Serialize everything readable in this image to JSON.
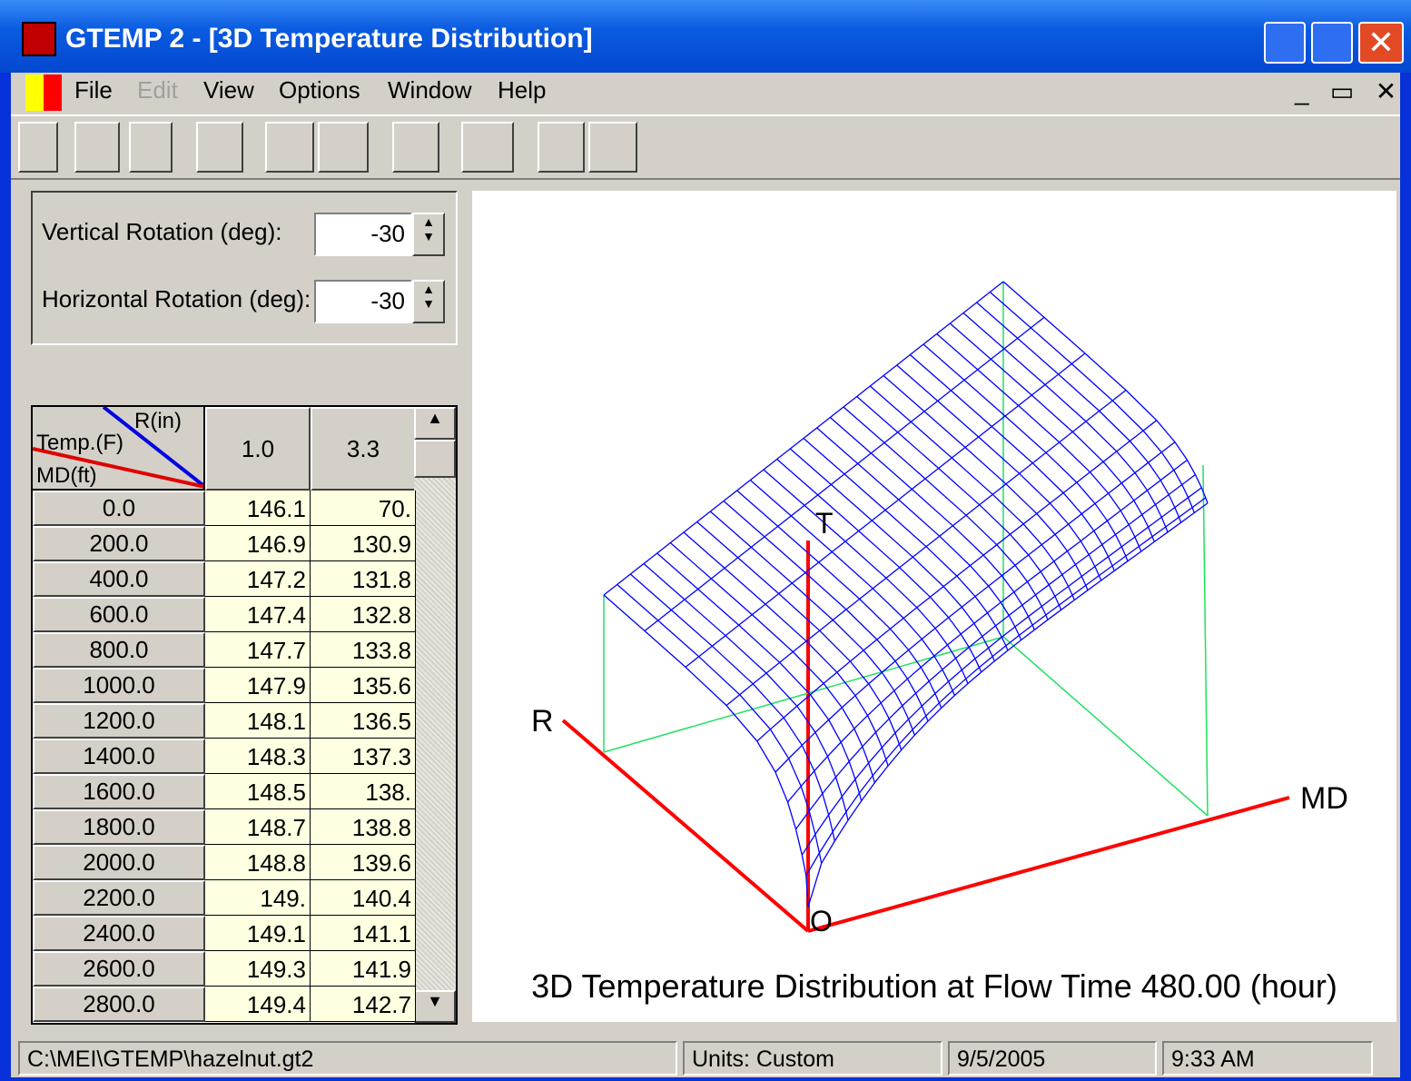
{
  "window": {
    "title": "GTEMP 2 - [3D Temperature Distribution]"
  },
  "menu": [
    "File",
    "Edit",
    "View",
    "Options",
    "Window",
    "Help"
  ],
  "rotation": {
    "vertical_label": "Vertical Rotation (deg):",
    "vertical_value": "-30",
    "horizontal_label": "Horizontal Rotation (deg):",
    "horizontal_value": "-30"
  },
  "table": {
    "corner": {
      "column_axis": "R(in)",
      "value_axis": "Temp.(F)",
      "row_axis": "MD(ft)"
    },
    "columns": [
      "1.0",
      "3.3"
    ],
    "rows": [
      [
        "0.0",
        "146.1",
        "70."
      ],
      [
        "200.0",
        "146.9",
        "130.9"
      ],
      [
        "400.0",
        "147.2",
        "131.8"
      ],
      [
        "600.0",
        "147.4",
        "132.8"
      ],
      [
        "800.0",
        "147.7",
        "133.8"
      ],
      [
        "1000.0",
        "147.9",
        "135.6"
      ],
      [
        "1200.0",
        "148.1",
        "136.5"
      ],
      [
        "1400.0",
        "148.3",
        "137.3"
      ],
      [
        "1600.0",
        "148.5",
        "138."
      ],
      [
        "1800.0",
        "148.7",
        "138.8"
      ],
      [
        "2000.0",
        "148.8",
        "139.6"
      ],
      [
        "2200.0",
        "149.",
        "140.4"
      ],
      [
        "2400.0",
        "149.1",
        "141.1"
      ],
      [
        "2600.0",
        "149.3",
        "141.9"
      ],
      [
        "2800.0",
        "149.4",
        "142.7"
      ]
    ]
  },
  "plot": {
    "axes": {
      "r": "R",
      "md": "MD",
      "t": "T",
      "origin": "O"
    },
    "caption": "3D Temperature Distribution at Flow Time 480.00 (hour)"
  },
  "status": [
    "C:\\MEI\\GTEMP\\hazelnut.gt2",
    "Units: Custom",
    "9/5/2005",
    "9:33 AM"
  ]
}
